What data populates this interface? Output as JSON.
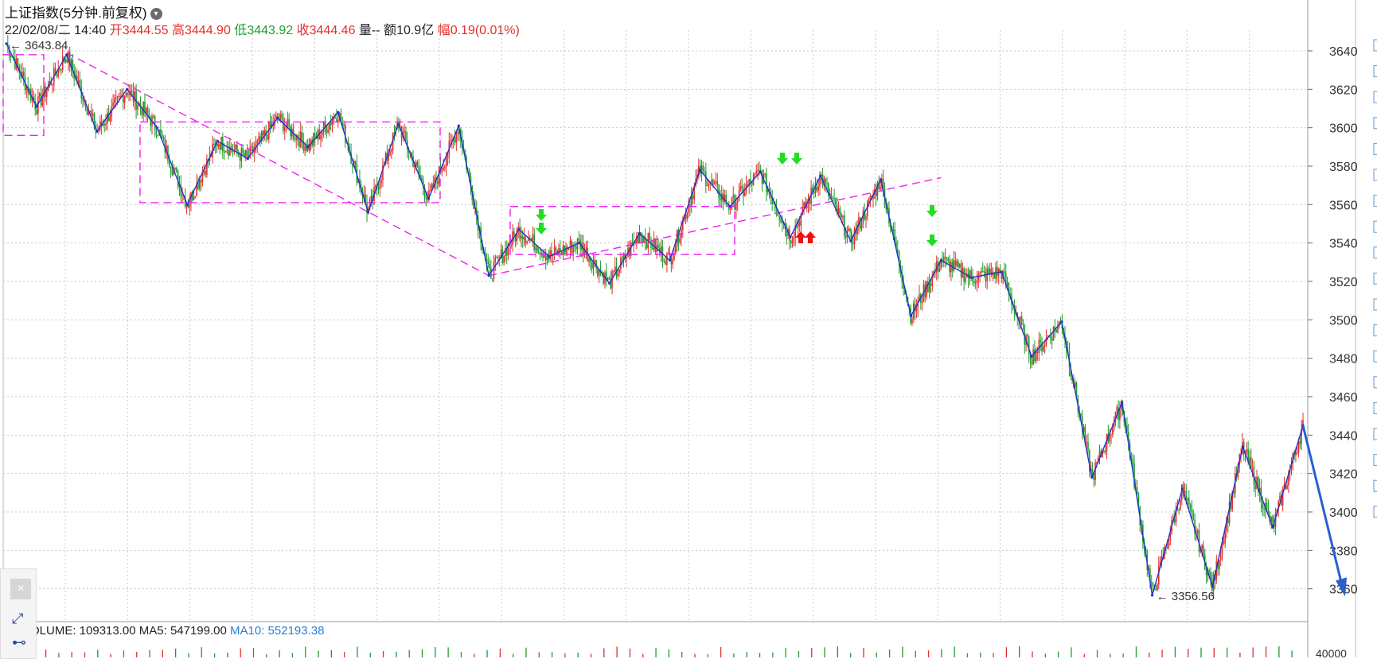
{
  "header": {
    "title": "上证指数(5分钟.前复权)",
    "date": "22/02/08/二 14:40",
    "open_label": "开",
    "open": "3444.55",
    "high_label": "高",
    "high": "3444.90",
    "low_label": "低",
    "low": "3443.92",
    "close_label": "收",
    "close": "3444.46",
    "qty_label": "量--",
    "amount_label": "额",
    "amount": "10.9亿",
    "range_label": "幅",
    "range": "0.19(0.01%)"
  },
  "volume": {
    "label": "OLUME: 109313.00",
    "ma5": "MA5: 547199.00",
    "ma10": "MA10: 552193.38",
    "axis_tick": "40000"
  },
  "annotations": {
    "max_label": "3643.84",
    "min_label": "3356.56"
  },
  "colors": {
    "up": "#e0312e",
    "down": "#1e9e2f",
    "zigzag": "#2232cc",
    "pattern": "#ee22ee",
    "arrow_down": "#22dd22",
    "arrow_up": "#ee1111",
    "forecast": "#2a5fd0"
  },
  "chart_data": {
    "type": "line",
    "title": "上证指数(5分钟.前复权)",
    "ylim": [
      3345,
      3660
    ],
    "y_ticks": [
      3640,
      3620,
      3600,
      3580,
      3560,
      3540,
      3520,
      3500,
      3480,
      3460,
      3440,
      3420,
      3400,
      3380,
      3360
    ],
    "grid": true,
    "series": [
      {
        "values": [
          3643.8,
          3611,
          3638,
          3598,
          3620,
          3600,
          3560,
          3593,
          3584,
          3605,
          3590,
          3608,
          3556,
          3602,
          3563,
          3601,
          3523,
          3547,
          3533,
          3540,
          3519,
          3545,
          3531,
          3578,
          3559,
          3577,
          3543,
          3575,
          3541,
          3573,
          3502,
          3531,
          3522,
          3525,
          3481,
          3499,
          3418,
          3457,
          3356.6,
          3412,
          3361,
          3434,
          3392,
          3445
        ]
      }
    ],
    "markers": [
      {
        "type": "down-arrow",
        "count": 2,
        "near_value": 3553
      },
      {
        "type": "down-arrow",
        "count": 2,
        "near_value": 3577
      },
      {
        "type": "up-arrow",
        "count": 2,
        "near_value": 3548
      },
      {
        "type": "down-arrow",
        "count": 2,
        "near_value": 3550
      }
    ]
  }
}
